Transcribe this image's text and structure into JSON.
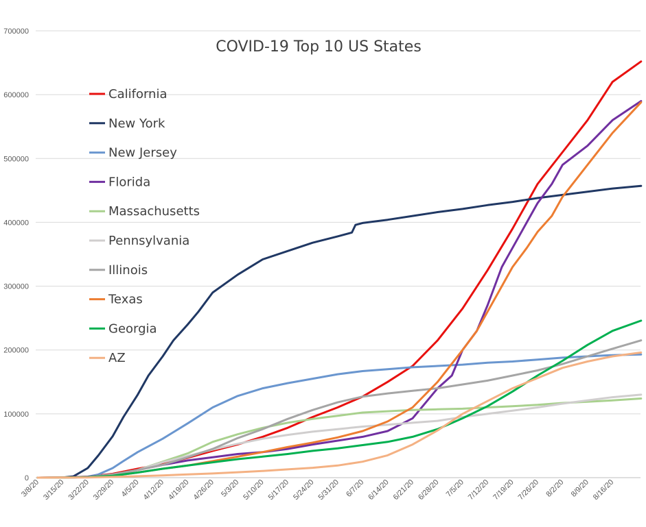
{
  "chart_data": {
    "type": "line",
    "title": "COVID-19 Top 10 US States",
    "xlabel": "",
    "ylabel": "",
    "ylim": [
      0,
      700000
    ],
    "yticks": [
      0,
      100000,
      200000,
      300000,
      400000,
      500000,
      600000,
      700000
    ],
    "ytick_labels": [
      "0",
      "100000",
      "200000",
      "300000",
      "400000",
      "500000",
      "600000",
      "700000"
    ],
    "x_range_days": [
      0,
      169
    ],
    "xticks": [
      {
        "day": 0,
        "label": "3/8/20"
      },
      {
        "day": 7,
        "label": "3/15/20"
      },
      {
        "day": 14,
        "label": "3/22/20"
      },
      {
        "day": 21,
        "label": "3/29/20"
      },
      {
        "day": 28,
        "label": "4/5/20"
      },
      {
        "day": 35,
        "label": "4/12/20"
      },
      {
        "day": 42,
        "label": "4/19/20"
      },
      {
        "day": 49,
        "label": "4/26/20"
      },
      {
        "day": 56,
        "label": "5/3/20"
      },
      {
        "day": 63,
        "label": "5/10/20"
      },
      {
        "day": 70,
        "label": "5/17/20"
      },
      {
        "day": 77,
        "label": "5/24/20"
      },
      {
        "day": 84,
        "label": "5/31/20"
      },
      {
        "day": 91,
        "label": "6/7/20"
      },
      {
        "day": 98,
        "label": "6/14/20"
      },
      {
        "day": 105,
        "label": "6/21/20"
      },
      {
        "day": 112,
        "label": "6/28/20"
      },
      {
        "day": 119,
        "label": "7/5/20"
      },
      {
        "day": 126,
        "label": "7/12/20"
      },
      {
        "day": 133,
        "label": "7/19/20"
      },
      {
        "day": 140,
        "label": "7/26/20"
      },
      {
        "day": 147,
        "label": "8/2/20"
      },
      {
        "day": 154,
        "label": "8/9/20"
      },
      {
        "day": 161,
        "label": "8/16/20"
      }
    ],
    "grid": true,
    "legend_placement": "upper-left",
    "series": [
      {
        "name": "California",
        "color": "#e8110f",
        "points": [
          [
            0,
            0
          ],
          [
            7,
            400
          ],
          [
            14,
            1500
          ],
          [
            21,
            6000
          ],
          [
            28,
            14000
          ],
          [
            35,
            21000
          ],
          [
            42,
            31000
          ],
          [
            49,
            42000
          ],
          [
            56,
            52000
          ],
          [
            63,
            64000
          ],
          [
            70,
            78000
          ],
          [
            77,
            95000
          ],
          [
            84,
            110000
          ],
          [
            91,
            127000
          ],
          [
            98,
            150000
          ],
          [
            105,
            175000
          ],
          [
            112,
            215000
          ],
          [
            119,
            265000
          ],
          [
            126,
            325000
          ],
          [
            133,
            390000
          ],
          [
            140,
            460000
          ],
          [
            147,
            510000
          ],
          [
            154,
            560000
          ],
          [
            161,
            620000
          ],
          [
            169,
            652000
          ]
        ]
      },
      {
        "name": "New York",
        "color": "#203864",
        "points": [
          [
            0,
            0
          ],
          [
            7,
            200
          ],
          [
            10,
            2000
          ],
          [
            14,
            15000
          ],
          [
            17,
            35000
          ],
          [
            21,
            65000
          ],
          [
            24,
            95000
          ],
          [
            28,
            130000
          ],
          [
            31,
            160000
          ],
          [
            35,
            190000
          ],
          [
            38,
            215000
          ],
          [
            42,
            240000
          ],
          [
            45,
            260000
          ],
          [
            49,
            290000
          ],
          [
            56,
            318000
          ],
          [
            63,
            342000
          ],
          [
            70,
            355000
          ],
          [
            77,
            368000
          ],
          [
            84,
            378000
          ],
          [
            88,
            384000
          ],
          [
            89,
            396000
          ],
          [
            91,
            399000
          ],
          [
            98,
            404000
          ],
          [
            105,
            410000
          ],
          [
            112,
            416000
          ],
          [
            119,
            421000
          ],
          [
            126,
            427000
          ],
          [
            133,
            432000
          ],
          [
            140,
            438000
          ],
          [
            147,
            443000
          ],
          [
            154,
            448000
          ],
          [
            161,
            453000
          ],
          [
            169,
            457000
          ]
        ]
      },
      {
        "name": "New Jersey",
        "color": "#6a96cf",
        "points": [
          [
            0,
            0
          ],
          [
            10,
            100
          ],
          [
            14,
            1500
          ],
          [
            17,
            5000
          ],
          [
            21,
            15000
          ],
          [
            24,
            26000
          ],
          [
            28,
            40000
          ],
          [
            35,
            61000
          ],
          [
            42,
            85000
          ],
          [
            49,
            110000
          ],
          [
            56,
            128000
          ],
          [
            63,
            140000
          ],
          [
            70,
            148000
          ],
          [
            77,
            155000
          ],
          [
            84,
            162000
          ],
          [
            91,
            167000
          ],
          [
            98,
            170000
          ],
          [
            105,
            173000
          ],
          [
            112,
            175000
          ],
          [
            119,
            177000
          ],
          [
            126,
            180000
          ],
          [
            133,
            182000
          ],
          [
            140,
            185000
          ],
          [
            147,
            188000
          ],
          [
            154,
            190000
          ],
          [
            161,
            192000
          ],
          [
            169,
            193000
          ]
        ]
      },
      {
        "name": "Florida",
        "color": "#7030a0",
        "points": [
          [
            0,
            0
          ],
          [
            7,
            100
          ],
          [
            14,
            1500
          ],
          [
            21,
            5000
          ],
          [
            28,
            12000
          ],
          [
            35,
            20000
          ],
          [
            42,
            27000
          ],
          [
            49,
            32000
          ],
          [
            56,
            37000
          ],
          [
            63,
            40000
          ],
          [
            70,
            45000
          ],
          [
            77,
            52000
          ],
          [
            84,
            58000
          ],
          [
            91,
            64000
          ],
          [
            98,
            73000
          ],
          [
            105,
            93000
          ],
          [
            112,
            140000
          ],
          [
            116,
            160000
          ],
          [
            119,
            200000
          ],
          [
            123,
            230000
          ],
          [
            126,
            270000
          ],
          [
            130,
            330000
          ],
          [
            133,
            360000
          ],
          [
            137,
            400000
          ],
          [
            140,
            430000
          ],
          [
            144,
            460000
          ],
          [
            147,
            490000
          ],
          [
            154,
            520000
          ],
          [
            161,
            560000
          ],
          [
            169,
            590000
          ]
        ]
      },
      {
        "name": "Massachusetts",
        "color": "#a9d18e",
        "points": [
          [
            0,
            0
          ],
          [
            7,
            100
          ],
          [
            14,
            800
          ],
          [
            21,
            5000
          ],
          [
            28,
            12000
          ],
          [
            35,
            25000
          ],
          [
            42,
            38000
          ],
          [
            49,
            56000
          ],
          [
            56,
            68000
          ],
          [
            63,
            78000
          ],
          [
            70,
            86000
          ],
          [
            77,
            92000
          ],
          [
            84,
            97000
          ],
          [
            91,
            102000
          ],
          [
            98,
            104000
          ],
          [
            105,
            106000
          ],
          [
            112,
            107000
          ],
          [
            119,
            108000
          ],
          [
            126,
            110000
          ],
          [
            133,
            112000
          ],
          [
            140,
            114000
          ],
          [
            147,
            117000
          ],
          [
            154,
            119000
          ],
          [
            161,
            121000
          ],
          [
            169,
            124000
          ]
        ]
      },
      {
        "name": "Pennsylvania",
        "color": "#d0cece",
        "points": [
          [
            0,
            0
          ],
          [
            7,
            100
          ],
          [
            14,
            800
          ],
          [
            21,
            4000
          ],
          [
            28,
            12000
          ],
          [
            35,
            24000
          ],
          [
            42,
            34000
          ],
          [
            49,
            44000
          ],
          [
            56,
            53000
          ],
          [
            63,
            61000
          ],
          [
            70,
            67000
          ],
          [
            77,
            72000
          ],
          [
            84,
            76000
          ],
          [
            91,
            80000
          ],
          [
            98,
            83000
          ],
          [
            105,
            86000
          ],
          [
            112,
            89000
          ],
          [
            119,
            95000
          ],
          [
            126,
            100000
          ],
          [
            133,
            105000
          ],
          [
            140,
            110000
          ],
          [
            147,
            116000
          ],
          [
            154,
            121000
          ],
          [
            161,
            126000
          ],
          [
            169,
            130000
          ]
        ]
      },
      {
        "name": "Illinois",
        "color": "#a5a5a5",
        "points": [
          [
            0,
            0
          ],
          [
            7,
            100
          ],
          [
            14,
            1000
          ],
          [
            21,
            5000
          ],
          [
            28,
            12000
          ],
          [
            35,
            20000
          ],
          [
            42,
            32000
          ],
          [
            49,
            45000
          ],
          [
            56,
            62000
          ],
          [
            63,
            76000
          ],
          [
            70,
            92000
          ],
          [
            77,
            106000
          ],
          [
            84,
            118000
          ],
          [
            91,
            127000
          ],
          [
            98,
            132000
          ],
          [
            105,
            136000
          ],
          [
            112,
            140000
          ],
          [
            119,
            146000
          ],
          [
            126,
            152000
          ],
          [
            133,
            160000
          ],
          [
            140,
            168000
          ],
          [
            147,
            178000
          ],
          [
            154,
            190000
          ],
          [
            161,
            202000
          ],
          [
            169,
            215000
          ]
        ]
      },
      {
        "name": "Texas",
        "color": "#ed7d31",
        "points": [
          [
            0,
            0
          ],
          [
            7,
            100
          ],
          [
            14,
            700
          ],
          [
            21,
            3000
          ],
          [
            28,
            8000
          ],
          [
            35,
            14000
          ],
          [
            42,
            19000
          ],
          [
            49,
            26000
          ],
          [
            56,
            33000
          ],
          [
            63,
            40000
          ],
          [
            70,
            48000
          ],
          [
            77,
            55000
          ],
          [
            84,
            63000
          ],
          [
            91,
            73000
          ],
          [
            98,
            88000
          ],
          [
            105,
            110000
          ],
          [
            112,
            150000
          ],
          [
            119,
            200000
          ],
          [
            123,
            230000
          ],
          [
            126,
            260000
          ],
          [
            130,
            300000
          ],
          [
            133,
            330000
          ],
          [
            137,
            360000
          ],
          [
            140,
            385000
          ],
          [
            144,
            410000
          ],
          [
            147,
            440000
          ],
          [
            154,
            490000
          ],
          [
            161,
            540000
          ],
          [
            169,
            588000
          ]
        ]
      },
      {
        "name": "Georgia",
        "color": "#00b050",
        "points": [
          [
            0,
            0
          ],
          [
            7,
            100
          ],
          [
            14,
            700
          ],
          [
            21,
            3000
          ],
          [
            28,
            8000
          ],
          [
            35,
            14000
          ],
          [
            42,
            19000
          ],
          [
            49,
            24000
          ],
          [
            56,
            29000
          ],
          [
            63,
            33000
          ],
          [
            70,
            37000
          ],
          [
            77,
            42000
          ],
          [
            84,
            46000
          ],
          [
            91,
            51000
          ],
          [
            98,
            56000
          ],
          [
            105,
            64000
          ],
          [
            112,
            76000
          ],
          [
            119,
            93000
          ],
          [
            126,
            112000
          ],
          [
            133,
            135000
          ],
          [
            140,
            160000
          ],
          [
            147,
            183000
          ],
          [
            154,
            208000
          ],
          [
            161,
            230000
          ],
          [
            169,
            246000
          ]
        ]
      },
      {
        "name": "AZ",
        "color": "#f4b183",
        "points": [
          [
            0,
            0
          ],
          [
            7,
            100
          ],
          [
            14,
            300
          ],
          [
            21,
            1200
          ],
          [
            28,
            2300
          ],
          [
            35,
            3500
          ],
          [
            42,
            5000
          ],
          [
            49,
            6500
          ],
          [
            56,
            8500
          ],
          [
            63,
            10500
          ],
          [
            70,
            13000
          ],
          [
            77,
            15500
          ],
          [
            84,
            19000
          ],
          [
            91,
            25000
          ],
          [
            98,
            35000
          ],
          [
            105,
            52000
          ],
          [
            112,
            74000
          ],
          [
            119,
            100000
          ],
          [
            126,
            120000
          ],
          [
            133,
            140000
          ],
          [
            140,
            156000
          ],
          [
            147,
            172000
          ],
          [
            154,
            182000
          ],
          [
            161,
            190000
          ],
          [
            169,
            196000
          ]
        ]
      }
    ]
  }
}
